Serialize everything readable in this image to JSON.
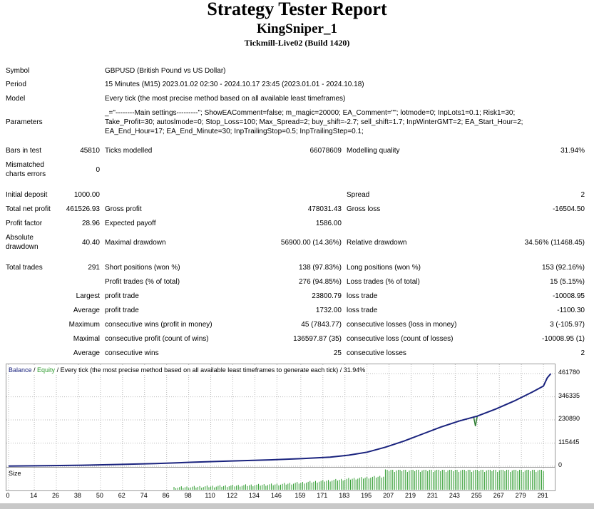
{
  "header": {
    "title": "Strategy Tester Report",
    "ea_name": "KingSniper_1",
    "server": "Tickmill-Live02 (Build 1420)"
  },
  "info": {
    "symbol_label": "Symbol",
    "symbol": "GBPUSD (British Pound vs US Dollar)",
    "period_label": "Period",
    "period": "15 Minutes (M15) 2023.01.02 02:30 - 2024.10.17 23:45 (2023.01.01 - 2024.10.18)",
    "model_label": "Model",
    "model": "Every tick (the most precise method based on all available least timeframes)",
    "parameters_label": "Parameters",
    "parameters": [
      "_=\"--------Main settings---------\"; ShowEAComment=false; m_magic=20000; EA_Comment=\"\"; lotmode=0; InpLots1=0.1; Risk1=30;",
      "Take_Profit=30; autoslmode=0; Stop_Loss=100; Max_Spread=2; buy_shift=-2.7; sell_shift=1.7; InpWinterGMT=2; EA_Start_Hour=2;",
      "EA_End_Hour=17; EA_End_Minute=30; InpTrailingStop=0.5; InpTrailingStep=0.1;"
    ]
  },
  "quality": {
    "bars_label": "Bars in test",
    "bars": "45810",
    "ticks_label": "Ticks modelled",
    "ticks": "66078609",
    "quality_label": "Modelling quality",
    "quality": "31.94%",
    "mismatch_label_1": "Mismatched",
    "mismatch_label_2": "charts errors",
    "mismatch": "0"
  },
  "results": {
    "initial_deposit_label": "Initial deposit",
    "initial_deposit": "1000.00",
    "spread_label": "Spread",
    "spread": "2",
    "net_profit_label": "Total net profit",
    "net_profit": "461526.93",
    "gross_profit_label": "Gross profit",
    "gross_profit": "478031.43",
    "gross_loss_label": "Gross loss",
    "gross_loss": "-16504.50",
    "profit_factor_label": "Profit factor",
    "profit_factor": "28.96",
    "expected_payoff_label": "Expected payoff",
    "expected_payoff": "1586.00",
    "absolute_dd_label_1": "Absolute",
    "absolute_dd_label_2": "drawdown",
    "absolute_dd": "40.40",
    "maximal_dd_label": "Maximal drawdown",
    "maximal_dd": "56900.00 (14.36%)",
    "relative_dd_label": "Relative drawdown",
    "relative_dd": "34.56% (11468.45)"
  },
  "trades": {
    "total_label": "Total trades",
    "total": "291",
    "short_label": "Short positions (won %)",
    "short": "138 (97.83%)",
    "long_label": "Long positions (won %)",
    "long": "153 (92.16%)",
    "profit_trades_label": "Profit trades (% of total)",
    "profit_trades": "276 (94.85%)",
    "loss_trades_label": "Loss trades (% of total)",
    "loss_trades": "15 (5.15%)",
    "largest_label": "Largest",
    "largest_profit_label": "profit trade",
    "largest_profit": "23800.79",
    "largest_loss_label": "loss trade",
    "largest_loss": "-10008.95",
    "average_label": "Average",
    "average_profit_label": "profit trade",
    "average_profit": "1732.00",
    "average_loss_label": "loss trade",
    "average_loss": "-1100.30",
    "maximum_label": "Maximum",
    "max_wins_label": "consecutive wins (profit in money)",
    "max_wins": "45 (7843.77)",
    "max_losses_label": "consecutive losses (loss in money)",
    "max_losses": "3 (-105.97)",
    "maximal_label": "Maximal",
    "maximal_profit_label": "consecutive profit (count of wins)",
    "maximal_profit": "136597.87 (35)",
    "maximal_loss_label": "consecutive loss (count of losses)",
    "maximal_loss": "-10008.95 (1)",
    "average2_label": "Average",
    "avg_wins_label": "consecutive wins",
    "avg_wins": "25",
    "avg_losses_label": "consecutive losses",
    "avg_losses": "2"
  },
  "chart_data": {
    "type": "line",
    "legend": {
      "balance": "Balance",
      "sep1": " / ",
      "equity": "Equity",
      "sep2": " / ",
      "rest": "Every tick (the most precise method based on all available least timeframes to generate each tick) / 31.94%"
    },
    "colors": {
      "balance": "#1a237e",
      "equity": "#2e7d32",
      "size": "#2e9b2e",
      "grid": "#b9b9b9"
    },
    "ylim": [
      0,
      480000
    ],
    "yticks": [
      "461780",
      "346335",
      "230890",
      "115445",
      "0"
    ],
    "ytick_values": [
      461780,
      346335,
      230890,
      115445,
      0
    ],
    "xlim": [
      0,
      296
    ],
    "xticks": [
      "0",
      "14",
      "26",
      "38",
      "50",
      "62",
      "74",
      "86",
      "98",
      "110",
      "122",
      "134",
      "146",
      "159",
      "171",
      "183",
      "195",
      "207",
      "219",
      "231",
      "243",
      "255",
      "267",
      "279",
      "291"
    ],
    "xtick_values": [
      0,
      14,
      26,
      38,
      50,
      62,
      74,
      86,
      98,
      110,
      122,
      134,
      146,
      159,
      171,
      183,
      195,
      207,
      219,
      231,
      243,
      255,
      267,
      279,
      291
    ],
    "balance": [
      [
        0,
        1000
      ],
      [
        20,
        2500
      ],
      [
        40,
        5000
      ],
      [
        60,
        9000
      ],
      [
        80,
        13000
      ],
      [
        100,
        20000
      ],
      [
        120,
        26000
      ],
      [
        140,
        31000
      ],
      [
        160,
        38000
      ],
      [
        175,
        45000
      ],
      [
        185,
        55000
      ],
      [
        195,
        70000
      ],
      [
        205,
        95000
      ],
      [
        215,
        125000
      ],
      [
        225,
        160000
      ],
      [
        235,
        195000
      ],
      [
        245,
        225000
      ],
      [
        255,
        250000
      ],
      [
        265,
        285000
      ],
      [
        275,
        325000
      ],
      [
        285,
        370000
      ],
      [
        291,
        400000
      ],
      [
        293,
        440000
      ],
      [
        295,
        461780
      ]
    ],
    "equity_dip": [
      [
        253,
        248000
      ],
      [
        254,
        200000
      ],
      [
        255,
        250000
      ]
    ],
    "size_label": "Size",
    "size_start": 90,
    "size_end": 291
  }
}
